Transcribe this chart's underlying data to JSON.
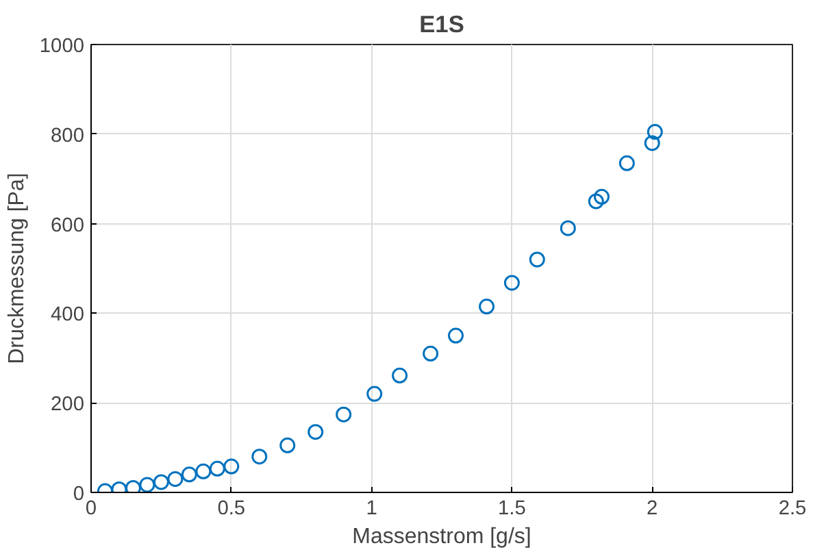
{
  "chart_data": {
    "type": "scatter",
    "title": "E1S",
    "xlabel": "Massenstrom [g/s]",
    "ylabel": "Druckmessung [Pa]",
    "x": [
      0.05,
      0.1,
      0.15,
      0.2,
      0.25,
      0.3,
      0.35,
      0.4,
      0.45,
      0.5,
      0.6,
      0.7,
      0.8,
      0.9,
      1.01,
      1.1,
      1.21,
      1.3,
      1.41,
      1.5,
      1.59,
      1.7,
      1.8,
      1.82,
      1.91,
      2.0,
      2.01
    ],
    "series": [
      {
        "color": "#0072bd",
        "values": [
          3,
          7,
          10,
          17,
          23,
          30,
          40,
          47,
          53,
          58,
          80,
          105,
          135,
          174,
          220,
          261,
          310,
          350,
          415,
          468,
          520,
          590,
          650,
          660,
          735,
          780,
          805
        ]
      }
    ],
    "xlim": [
      0,
      2.5
    ],
    "ylim": [
      0,
      1000
    ],
    "xticks": [
      0,
      0.5,
      1,
      1.5,
      2,
      2.5
    ],
    "yticks": [
      0,
      200,
      400,
      600,
      800,
      1000
    ],
    "grid": true,
    "marker": "circle"
  }
}
